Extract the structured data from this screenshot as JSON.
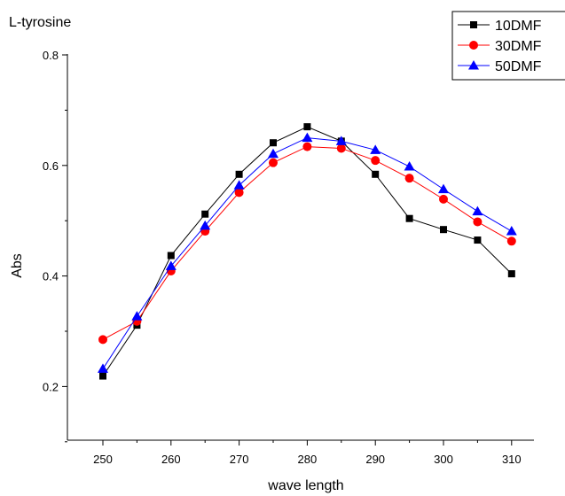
{
  "chart_data": {
    "type": "line",
    "title": "L-tyrosine",
    "xlabel": "wave length",
    "ylabel": "Abs",
    "xlim": [
      245,
      312
    ],
    "ylim": [
      0.1,
      0.8
    ],
    "x_ticks": [
      250,
      260,
      270,
      280,
      290,
      300,
      310
    ],
    "x_tick_labels": [
      "250",
      "260",
      "270",
      "280",
      "290",
      "300",
      "310"
    ],
    "y_ticks": [
      0.2,
      0.4,
      0.6,
      0.8
    ],
    "y_tick_labels": [
      "0.2",
      "0.4",
      "0.6",
      "0.8"
    ],
    "grid": false,
    "legend_position": "top-right",
    "x": [
      250,
      255,
      260,
      265,
      270,
      275,
      280,
      285,
      290,
      295,
      300,
      305,
      310
    ],
    "series": [
      {
        "name": "10DMF",
        "color": "#000000",
        "marker": "square",
        "values": [
          0.219,
          0.311,
          0.437,
          0.512,
          0.584,
          0.641,
          0.67,
          0.644,
          0.584,
          0.504,
          0.484,
          0.465,
          0.404
        ]
      },
      {
        "name": "30DMF",
        "color": "#ff0000",
        "marker": "circle",
        "values": [
          0.285,
          0.318,
          0.409,
          0.481,
          0.551,
          0.605,
          0.634,
          0.631,
          0.609,
          0.577,
          0.539,
          0.498,
          0.463
        ]
      },
      {
        "name": "50DMF",
        "color": "#0000ff",
        "marker": "triangle",
        "values": [
          0.232,
          0.327,
          0.418,
          0.491,
          0.564,
          0.621,
          0.65,
          0.644,
          0.628,
          0.598,
          0.557,
          0.517,
          0.481
        ]
      }
    ]
  }
}
